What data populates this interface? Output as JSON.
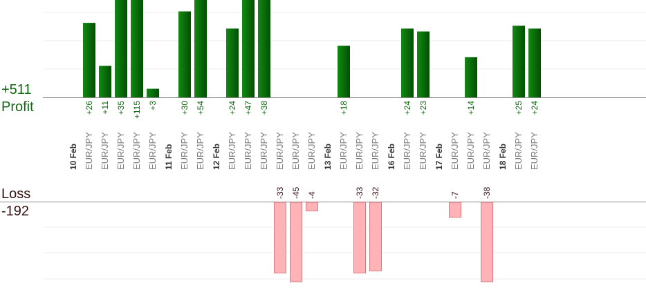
{
  "profit_total": "+511",
  "profit_label": "Profit",
  "loss_label": "Loss",
  "loss_total": "-192",
  "colors": {
    "profit_bar_light": "#118a11",
    "profit_bar_dark": "#034f03",
    "profit_text": "#116611",
    "loss_bar_fill": "#ffb3b6",
    "loss_bar_stroke": "#d77a80",
    "loss_text": "#331111",
    "axis_text": "#7a7a7a",
    "date_text": "#333333",
    "grid": "#ececec",
    "axis": "#888888"
  },
  "chart_data": {
    "type": "bar",
    "title": "",
    "columns": [
      {
        "date": "10 Feb"
      },
      {
        "label": "EUR/JPY",
        "profit": 26
      },
      {
        "label": "EUR/JPY",
        "profit": 11
      },
      {
        "label": "EUR/JPY",
        "profit": 35
      },
      {
        "label": "EUR/JPY",
        "profit": 115
      },
      {
        "label": "EUR/JPY",
        "profit": 3
      },
      {
        "date": "11 Feb"
      },
      {
        "label": "EUR/JPY",
        "profit": 30
      },
      {
        "label": "EUR/JPY",
        "profit": 54
      },
      {
        "date": "12 Feb"
      },
      {
        "label": "EUR/JPY",
        "profit": 24
      },
      {
        "label": "EUR/JPY",
        "profit": 47
      },
      {
        "label": "EUR/JPY",
        "profit": 38
      },
      {
        "label": "EUR/JPY",
        "loss": -33
      },
      {
        "label": "EUR/JPY",
        "loss": -45
      },
      {
        "label": "EUR/JPY",
        "loss": -4
      },
      {
        "date": "13 Feb"
      },
      {
        "label": "EUR/JPY",
        "profit": 18
      },
      {
        "label": "EUR/JPY",
        "loss": -33
      },
      {
        "label": "EUR/JPY",
        "loss": -32
      },
      {
        "date": "16 Feb"
      },
      {
        "label": "EUR/JPY",
        "profit": 24
      },
      {
        "label": "EUR/JPY",
        "profit": 23
      },
      {
        "date": "17 Feb"
      },
      {
        "label": "EUR/JPY",
        "loss": -7
      },
      {
        "label": "EUR/JPY",
        "profit": 14
      },
      {
        "label": "EUR/JPY",
        "loss": -38
      },
      {
        "date": "18 Feb"
      },
      {
        "label": "EUR/JPY",
        "profit": 25
      },
      {
        "label": "EUR/JPY",
        "profit": 24
      }
    ]
  }
}
